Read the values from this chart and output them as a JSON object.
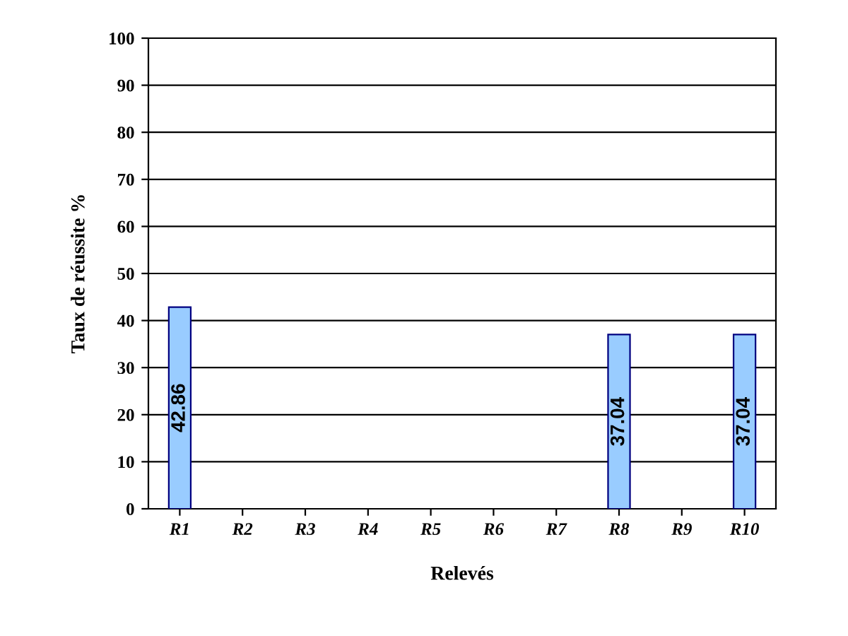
{
  "chart_data": {
    "type": "bar",
    "xlabel": "Relevés",
    "ylabel": "Taux de réussite %",
    "categories": [
      "R1",
      "R2",
      "R3",
      "R4",
      "R5",
      "R6",
      "R7",
      "R8",
      "R9",
      "R10"
    ],
    "values": [
      42.86,
      null,
      null,
      null,
      null,
      null,
      null,
      37.04,
      null,
      37.04
    ],
    "value_labels": [
      "42.86",
      null,
      null,
      null,
      null,
      null,
      null,
      "37.04",
      null,
      "37.04"
    ],
    "color": "#99ccff",
    "ylim": [
      0,
      100
    ],
    "yticks": [
      0,
      10,
      20,
      30,
      40,
      50,
      60,
      70,
      80,
      90,
      100
    ],
    "grid": "y",
    "legend": false
  }
}
